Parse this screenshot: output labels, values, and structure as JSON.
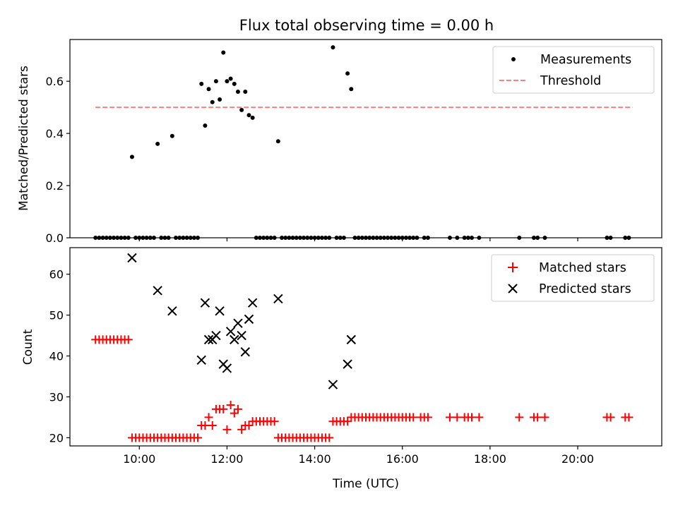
{
  "figure": {
    "title": "Flux total observing time = 0.00 h"
  },
  "colors": {
    "measurements": "#000000",
    "threshold": "#ff7f7f",
    "matched": "#ff0000",
    "predicted": "#000000"
  },
  "chart_data": [
    {
      "type": "scatter",
      "panel": "top",
      "xlabel": "",
      "ylabel": "Matched/Predicted stars",
      "xlim": [
        "08:25",
        "21:55"
      ],
      "ylim": [
        0,
        0.76
      ],
      "yticks": [
        "0.0",
        "0.2",
        "0.4",
        "0.6"
      ],
      "ytick_values": [
        0,
        0.2,
        0.4,
        0.6
      ],
      "xticks_hidden": true,
      "legend": {
        "location": "top-right",
        "entries": [
          "Measurements",
          "Threshold"
        ]
      },
      "series": [
        {
          "name": "Measurements",
          "marker": "dot",
          "points": [
            [
              "09:00",
              0
            ],
            [
              "09:05",
              0
            ],
            [
              "09:10",
              0
            ],
            [
              "09:15",
              0
            ],
            [
              "09:20",
              0
            ],
            [
              "09:25",
              0
            ],
            [
              "09:30",
              0
            ],
            [
              "09:35",
              0
            ],
            [
              "09:40",
              0
            ],
            [
              "09:45",
              0
            ],
            [
              "09:50",
              0.31
            ],
            [
              "09:55",
              0
            ],
            [
              "10:00",
              0
            ],
            [
              "10:05",
              0
            ],
            [
              "10:10",
              0
            ],
            [
              "10:15",
              0
            ],
            [
              "10:20",
              0
            ],
            [
              "10:25",
              0.36
            ],
            [
              "10:30",
              0
            ],
            [
              "10:35",
              0
            ],
            [
              "10:40",
              0
            ],
            [
              "10:45",
              0.39
            ],
            [
              "10:50",
              0
            ],
            [
              "10:55",
              0
            ],
            [
              "11:00",
              0
            ],
            [
              "11:05",
              0
            ],
            [
              "11:10",
              0
            ],
            [
              "11:15",
              0
            ],
            [
              "11:20",
              0
            ],
            [
              "11:25",
              0.59
            ],
            [
              "11:30",
              0.43
            ],
            [
              "11:35",
              0.57
            ],
            [
              "11:40",
              0.52
            ],
            [
              "11:45",
              0.6
            ],
            [
              "11:50",
              0.53
            ],
            [
              "11:55",
              0.71
            ],
            [
              "12:00",
              0.6
            ],
            [
              "12:05",
              0.61
            ],
            [
              "12:10",
              0.59
            ],
            [
              "12:15",
              0.56
            ],
            [
              "12:20",
              0.49
            ],
            [
              "12:25",
              0.56
            ],
            [
              "12:30",
              0.47
            ],
            [
              "12:35",
              0.46
            ],
            [
              "12:40",
              0
            ],
            [
              "12:45",
              0
            ],
            [
              "12:50",
              0
            ],
            [
              "12:55",
              0
            ],
            [
              "13:00",
              0
            ],
            [
              "13:05",
              0
            ],
            [
              "13:10",
              0.37
            ],
            [
              "13:15",
              0
            ],
            [
              "13:20",
              0
            ],
            [
              "13:25",
              0
            ],
            [
              "13:30",
              0
            ],
            [
              "13:35",
              0
            ],
            [
              "13:40",
              0
            ],
            [
              "13:45",
              0
            ],
            [
              "13:50",
              0
            ],
            [
              "13:55",
              0
            ],
            [
              "14:00",
              0
            ],
            [
              "14:05",
              0
            ],
            [
              "14:10",
              0
            ],
            [
              "14:15",
              0
            ],
            [
              "14:20",
              0
            ],
            [
              "14:25",
              0.73
            ],
            [
              "14:30",
              0
            ],
            [
              "14:35",
              0
            ],
            [
              "14:40",
              0
            ],
            [
              "14:45",
              0.63
            ],
            [
              "14:50",
              0.57
            ],
            [
              "14:55",
              0
            ],
            [
              "15:00",
              0
            ],
            [
              "15:05",
              0
            ],
            [
              "15:10",
              0
            ],
            [
              "15:15",
              0
            ],
            [
              "15:20",
              0
            ],
            [
              "15:25",
              0
            ],
            [
              "15:30",
              0
            ],
            [
              "15:35",
              0
            ],
            [
              "15:40",
              0
            ],
            [
              "15:45",
              0
            ],
            [
              "15:50",
              0
            ],
            [
              "15:55",
              0
            ],
            [
              "16:00",
              0
            ],
            [
              "16:05",
              0
            ],
            [
              "16:10",
              0
            ],
            [
              "16:15",
              0
            ],
            [
              "16:20",
              0
            ],
            [
              "16:30",
              0
            ],
            [
              "16:35",
              0
            ],
            [
              "17:05",
              0
            ],
            [
              "17:15",
              0
            ],
            [
              "17:25",
              0
            ],
            [
              "17:30",
              0
            ],
            [
              "17:35",
              0
            ],
            [
              "17:45",
              0
            ],
            [
              "18:40",
              0
            ],
            [
              "19:00",
              0
            ],
            [
              "19:05",
              0
            ],
            [
              "19:15",
              0
            ],
            [
              "20:40",
              0
            ],
            [
              "20:45",
              0
            ],
            [
              "21:05",
              0
            ],
            [
              "21:10",
              0
            ]
          ]
        },
        {
          "name": "Threshold",
          "style": "dashed",
          "points": [
            [
              "09:00",
              0.5
            ],
            [
              "21:15",
              0.5
            ]
          ]
        }
      ]
    },
    {
      "type": "scatter",
      "panel": "bottom",
      "xlabel": "Time (UTC)",
      "ylabel": "Count",
      "xlim": [
        "08:25",
        "21:55"
      ],
      "ylim": [
        18,
        66.5
      ],
      "yticks": [
        "20",
        "30",
        "40",
        "50",
        "60"
      ],
      "ytick_values": [
        20,
        30,
        40,
        50,
        60
      ],
      "xticks": [
        "10:00",
        "12:00",
        "14:00",
        "16:00",
        "18:00",
        "20:00"
      ],
      "legend": {
        "location": "top-right",
        "entries": [
          "Matched stars",
          "Predicted stars"
        ]
      },
      "series": [
        {
          "name": "Matched stars",
          "marker": "plus",
          "points": [
            [
              "09:00",
              44
            ],
            [
              "09:05",
              44
            ],
            [
              "09:10",
              44
            ],
            [
              "09:15",
              44
            ],
            [
              "09:20",
              44
            ],
            [
              "09:25",
              44
            ],
            [
              "09:30",
              44
            ],
            [
              "09:35",
              44
            ],
            [
              "09:40",
              44
            ],
            [
              "09:45",
              44
            ],
            [
              "09:50",
              20
            ],
            [
              "09:55",
              20
            ],
            [
              "10:00",
              20
            ],
            [
              "10:05",
              20
            ],
            [
              "10:10",
              20
            ],
            [
              "10:15",
              20
            ],
            [
              "10:20",
              20
            ],
            [
              "10:25",
              20
            ],
            [
              "10:30",
              20
            ],
            [
              "10:35",
              20
            ],
            [
              "10:40",
              20
            ],
            [
              "10:45",
              20
            ],
            [
              "10:50",
              20
            ],
            [
              "10:55",
              20
            ],
            [
              "11:00",
              20
            ],
            [
              "11:05",
              20
            ],
            [
              "11:10",
              20
            ],
            [
              "11:15",
              20
            ],
            [
              "11:20",
              20
            ],
            [
              "11:25",
              23
            ],
            [
              "11:30",
              23
            ],
            [
              "11:35",
              25
            ],
            [
              "11:40",
              23
            ],
            [
              "11:45",
              27
            ],
            [
              "11:50",
              27
            ],
            [
              "11:55",
              27
            ],
            [
              "12:00",
              22
            ],
            [
              "12:05",
              28
            ],
            [
              "12:10",
              26
            ],
            [
              "12:15",
              27
            ],
            [
              "12:20",
              22
            ],
            [
              "12:25",
              23
            ],
            [
              "12:30",
              23
            ],
            [
              "12:35",
              24
            ],
            [
              "12:40",
              24
            ],
            [
              "12:45",
              24
            ],
            [
              "12:50",
              24
            ],
            [
              "12:55",
              24
            ],
            [
              "13:00",
              24
            ],
            [
              "13:05",
              24
            ],
            [
              "13:10",
              20
            ],
            [
              "13:15",
              20
            ],
            [
              "13:20",
              20
            ],
            [
              "13:25",
              20
            ],
            [
              "13:30",
              20
            ],
            [
              "13:35",
              20
            ],
            [
              "13:40",
              20
            ],
            [
              "13:45",
              20
            ],
            [
              "13:50",
              20
            ],
            [
              "13:55",
              20
            ],
            [
              "14:00",
              20
            ],
            [
              "14:05",
              20
            ],
            [
              "14:10",
              20
            ],
            [
              "14:15",
              20
            ],
            [
              "14:20",
              20
            ],
            [
              "14:25",
              24
            ],
            [
              "14:30",
              24
            ],
            [
              "14:35",
              24
            ],
            [
              "14:40",
              24
            ],
            [
              "14:45",
              24
            ],
            [
              "14:50",
              25
            ],
            [
              "14:55",
              25
            ],
            [
              "15:00",
              25
            ],
            [
              "15:05",
              25
            ],
            [
              "15:10",
              25
            ],
            [
              "15:15",
              25
            ],
            [
              "15:20",
              25
            ],
            [
              "15:25",
              25
            ],
            [
              "15:30",
              25
            ],
            [
              "15:35",
              25
            ],
            [
              "15:40",
              25
            ],
            [
              "15:45",
              25
            ],
            [
              "15:50",
              25
            ],
            [
              "15:55",
              25
            ],
            [
              "16:00",
              25
            ],
            [
              "16:05",
              25
            ],
            [
              "16:10",
              25
            ],
            [
              "16:15",
              25
            ],
            [
              "16:25",
              25
            ],
            [
              "16:30",
              25
            ],
            [
              "16:35",
              25
            ],
            [
              "17:05",
              25
            ],
            [
              "17:15",
              25
            ],
            [
              "17:25",
              25
            ],
            [
              "17:30",
              25
            ],
            [
              "17:35",
              25
            ],
            [
              "17:45",
              25
            ],
            [
              "18:40",
              25
            ],
            [
              "19:00",
              25
            ],
            [
              "19:05",
              25
            ],
            [
              "19:15",
              25
            ],
            [
              "20:40",
              25
            ],
            [
              "20:45",
              25
            ],
            [
              "21:05",
              25
            ],
            [
              "21:10",
              25
            ]
          ]
        },
        {
          "name": "Predicted stars",
          "marker": "x",
          "points": [
            [
              "09:50",
              64
            ],
            [
              "10:25",
              56
            ],
            [
              "10:45",
              51
            ],
            [
              "11:25",
              39
            ],
            [
              "11:30",
              53
            ],
            [
              "11:35",
              44
            ],
            [
              "11:40",
              44
            ],
            [
              "11:45",
              45
            ],
            [
              "11:50",
              51
            ],
            [
              "11:55",
              38
            ],
            [
              "12:00",
              37
            ],
            [
              "12:05",
              46
            ],
            [
              "12:10",
              44
            ],
            [
              "12:15",
              48
            ],
            [
              "12:20",
              45
            ],
            [
              "12:25",
              41
            ],
            [
              "12:30",
              49
            ],
            [
              "12:35",
              53
            ],
            [
              "13:10",
              54
            ],
            [
              "14:25",
              33
            ],
            [
              "14:45",
              38
            ],
            [
              "14:50",
              44
            ]
          ]
        }
      ]
    }
  ]
}
